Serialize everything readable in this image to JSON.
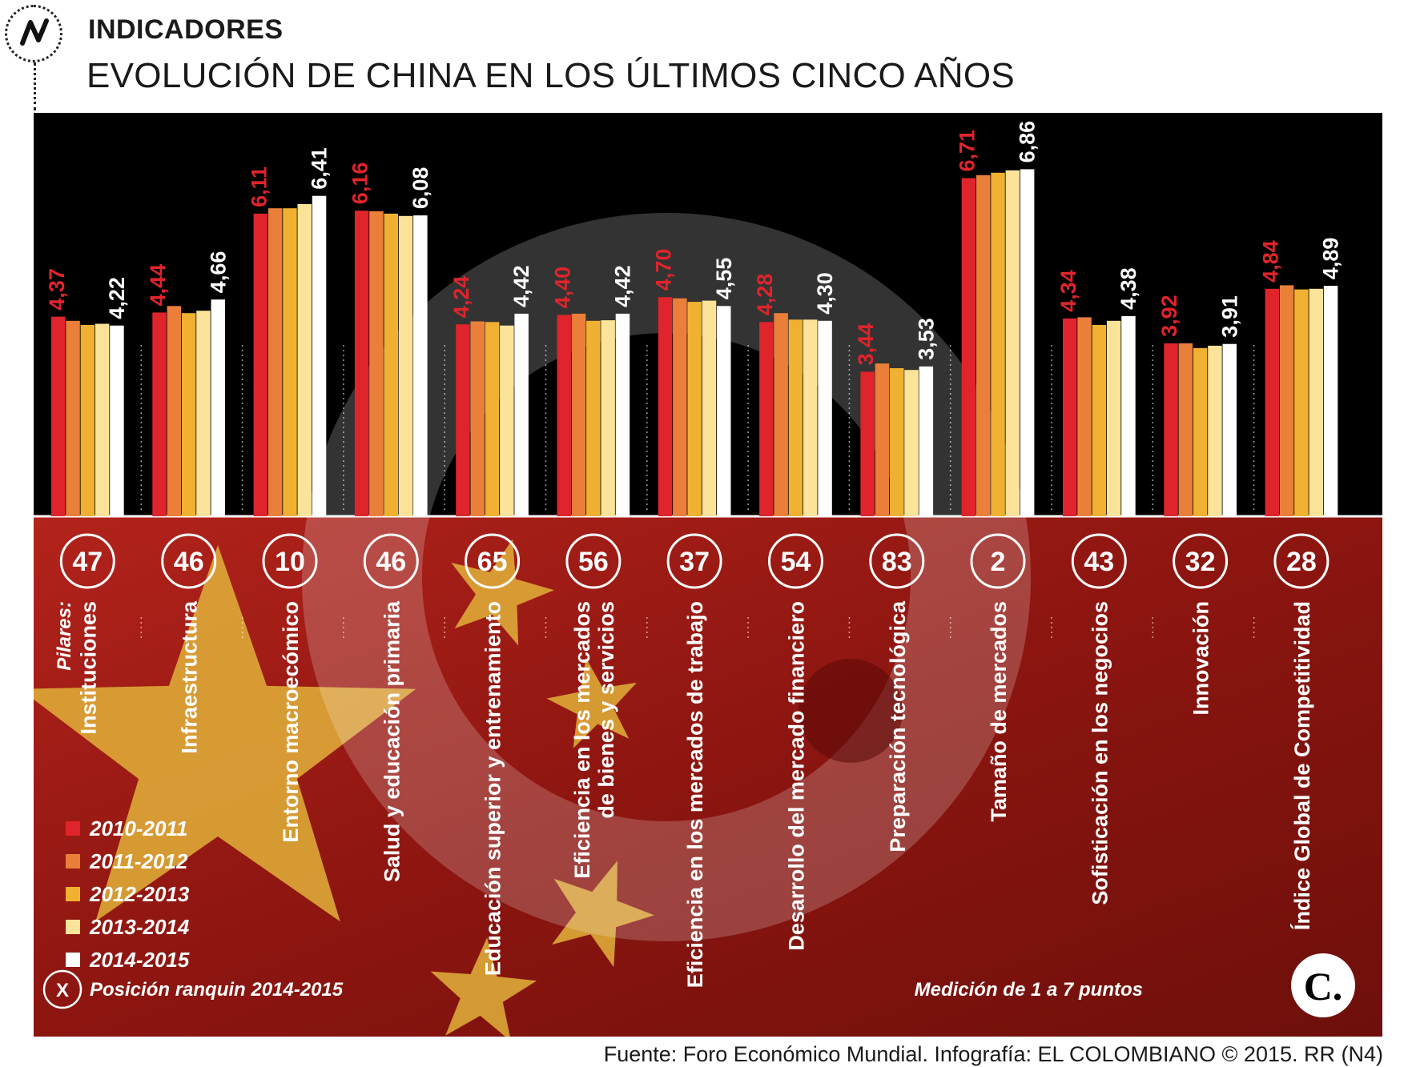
{
  "header": {
    "kicker": "INDICADORES",
    "title": "EVOLUCIÓN DE CHINA EN LOS ÚLTIMOS CINCO AÑOS"
  },
  "source": "Fuente: Foro Económico Mundial. Infografía: EL COLOMBIANO © 2015. RR (N4)",
  "brand_mark": "C.",
  "colors": {
    "2010-2011": "#e0242b",
    "2011-2012": "#ea7f3a",
    "2012-2013": "#f0b132",
    "2013-2014": "#fbe39a",
    "2014-2015": "#ffffff",
    "label_first": "#e0242b",
    "label_last": "#ffffff",
    "panel_top": "#000000",
    "panel_bottom": "#9a1a14"
  },
  "chart_data": {
    "type": "bar",
    "pillars_label": "Pilares:",
    "scale_note": "Medición de 1 a 7 puntos",
    "ranking_key_symbol": "X",
    "ranking_key_label": "Posición ranquin 2014-2015",
    "series_names": [
      "2010-2011",
      "2011-2012",
      "2012-2013",
      "2013-2014",
      "2014-2015"
    ],
    "categories": [
      {
        "lines": [
          "Instituciones"
        ],
        "rank": "47",
        "values": [
          4.37,
          4.3,
          4.23,
          4.25,
          4.22
        ],
        "first_label": "4,37",
        "last_label": "4,22"
      },
      {
        "lines": [
          "Infraestructura"
        ],
        "rank": "46",
        "values": [
          4.44,
          4.55,
          4.43,
          4.47,
          4.66
        ],
        "first_label": "4,44",
        "last_label": "4,66"
      },
      {
        "lines": [
          "Entorno macroecómico"
        ],
        "rank": "10",
        "values": [
          6.11,
          6.2,
          6.2,
          6.27,
          6.41
        ],
        "first_label": "6,11",
        "last_label": "6,41"
      },
      {
        "lines": [
          "Salud y educación primaria"
        ],
        "rank": "46",
        "values": [
          6.16,
          6.15,
          6.11,
          6.07,
          6.08
        ],
        "first_label": "6,16",
        "last_label": "6,08"
      },
      {
        "lines": [
          "Educación superior y entrenamiento"
        ],
        "rank": "65",
        "values": [
          4.24,
          4.29,
          4.28,
          4.22,
          4.42
        ],
        "first_label": "4,24",
        "last_label": "4,42"
      },
      {
        "lines": [
          "Eficiencia en los mercados",
          "de bienes y servicios"
        ],
        "rank": "56",
        "values": [
          4.4,
          4.42,
          4.3,
          4.31,
          4.42
        ],
        "first_label": "4,40",
        "last_label": "4,42"
      },
      {
        "lines": [
          "Eficiencia en los mercados de trabajo"
        ],
        "rank": "37",
        "values": [
          4.7,
          4.68,
          4.62,
          4.64,
          4.55
        ],
        "first_label": "4,70",
        "last_label": "4,55"
      },
      {
        "lines": [
          "Desarrollo del mercado financiero"
        ],
        "rank": "54",
        "values": [
          4.28,
          4.43,
          4.32,
          4.32,
          4.3
        ],
        "first_label": "4,28",
        "last_label": "4,30"
      },
      {
        "lines": [
          "Preparación tecnológica"
        ],
        "rank": "83",
        "values": [
          3.44,
          3.58,
          3.5,
          3.47,
          3.53
        ],
        "first_label": "3,44",
        "last_label": "3,53"
      },
      {
        "lines": [
          "Tamaño de mercados"
        ],
        "rank": "2",
        "values": [
          6.71,
          6.76,
          6.8,
          6.84,
          6.86
        ],
        "first_label": "6,71",
        "last_label": "6,86"
      },
      {
        "lines": [
          "Sofisticación en los negocios"
        ],
        "rank": "43",
        "values": [
          4.34,
          4.36,
          4.23,
          4.3,
          4.38
        ],
        "first_label": "4,34",
        "last_label": "4,38"
      },
      {
        "lines": [
          "Innovación"
        ],
        "rank": "32",
        "values": [
          3.92,
          3.92,
          3.84,
          3.88,
          3.91
        ],
        "first_label": "3,92",
        "last_label": "3,91"
      },
      {
        "lines": [
          "Índice Global de Competitividad"
        ],
        "rank": "28",
        "values": [
          4.84,
          4.9,
          4.83,
          4.84,
          4.89
        ],
        "first_label": "4,84",
        "last_label": "4,89"
      }
    ],
    "ylim": [
      1,
      7
    ]
  }
}
